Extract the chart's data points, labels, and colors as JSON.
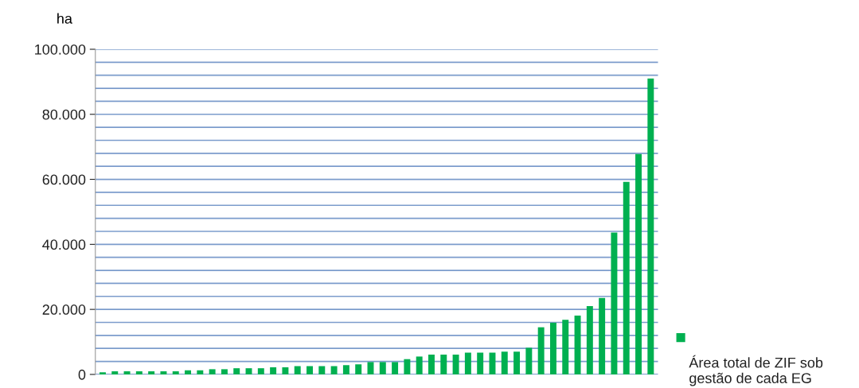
{
  "chart_data": {
    "type": "bar",
    "ylabel": "ha",
    "categories": [
      null,
      null,
      null,
      null,
      null,
      null,
      null,
      null,
      null,
      null,
      null,
      null,
      null,
      null,
      null,
      null,
      null,
      null,
      null,
      null,
      null,
      null,
      null,
      null,
      null,
      null,
      null,
      null,
      null,
      null,
      null,
      null,
      null,
      null,
      null,
      null,
      null,
      null,
      null,
      null,
      null,
      null,
      null,
      null,
      null,
      null
    ],
    "series": [
      {
        "name": "Área total de ZIF sob gestão de cada EG",
        "color": "#00b050",
        "values": [
          650,
          950,
          950,
          950,
          950,
          950,
          950,
          1250,
          1250,
          1600,
          1600,
          1900,
          1900,
          1900,
          2200,
          2200,
          2550,
          2550,
          2550,
          2550,
          2850,
          3100,
          3800,
          3800,
          3800,
          4700,
          5500,
          6100,
          6100,
          6100,
          6700,
          6700,
          6700,
          7000,
          7000,
          8200,
          14500,
          15900,
          16800,
          18100,
          21000,
          23500,
          43600,
          59200,
          67800,
          91000
        ]
      }
    ],
    "ylim": [
      0,
      100000
    ],
    "yticks": [
      {
        "value": 0,
        "label": "0"
      },
      {
        "value": 4000,
        "label": null
      },
      {
        "value": 8000,
        "label": null
      },
      {
        "value": 12000,
        "label": null
      },
      {
        "value": 16000,
        "label": null
      },
      {
        "value": 20000,
        "label": "20.000"
      },
      {
        "value": 24000,
        "label": null
      },
      {
        "value": 28000,
        "label": null
      },
      {
        "value": 32000,
        "label": null
      },
      {
        "value": 36000,
        "label": null
      },
      {
        "value": 40000,
        "label": "40.000"
      },
      {
        "value": 44000,
        "label": null
      },
      {
        "value": 48000,
        "label": null
      },
      {
        "value": 52000,
        "label": null
      },
      {
        "value": 56000,
        "label": null
      },
      {
        "value": 60000,
        "label": "60.000"
      },
      {
        "value": 64000,
        "label": null
      },
      {
        "value": 68000,
        "label": null
      },
      {
        "value": 72000,
        "label": null
      },
      {
        "value": 76000,
        "label": null
      },
      {
        "value": 80000,
        "label": "80.000"
      },
      {
        "value": 84000,
        "label": null
      },
      {
        "value": 88000,
        "label": null
      },
      {
        "value": 92000,
        "label": null
      },
      {
        "value": 96000,
        "label": null
      },
      {
        "value": 100000,
        "label": "100.000"
      }
    ],
    "grid": "y",
    "legend": "bottom right"
  }
}
